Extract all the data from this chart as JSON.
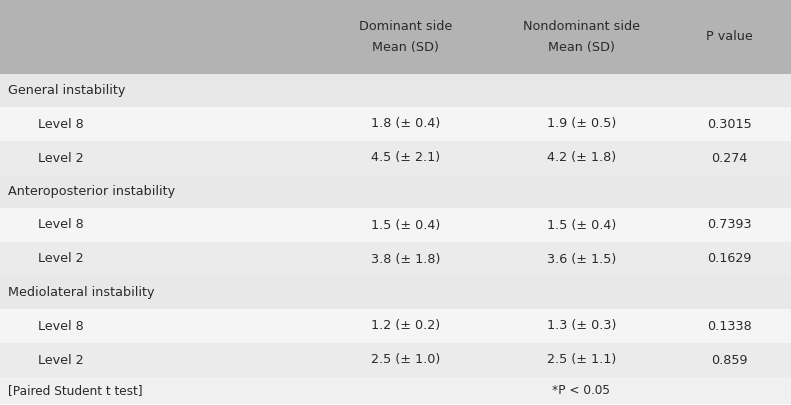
{
  "header_bg": "#b3b3b3",
  "section_bg": "#e8e8e8",
  "row_bg_odd": "#f5f5f5",
  "row_bg_even": "#ebebeb",
  "footer_bg": "#f0f0f0",
  "text_color": "#2a2a2a",
  "col_headers": [
    "Dominant side\nMean (SD)",
    "Nondominant side\nMean (SD)",
    "P value"
  ],
  "sections": [
    {
      "label": "General instability",
      "rows": [
        {
          "label": "Level 8",
          "dom": "1.8 (± 0.4)",
          "nondom": "1.9 (± 0.5)",
          "pval": "0.3015"
        },
        {
          "label": "Level 2",
          "dom": "4.5 (± 2.1)",
          "nondom": "4.2 (± 1.8)",
          "pval": "0.274"
        }
      ]
    },
    {
      "label": "Anteroposterior instability",
      "rows": [
        {
          "label": "Level 8",
          "dom": "1.5 (± 0.4)",
          "nondom": "1.5 (± 0.4)",
          "pval": "0.7393"
        },
        {
          "label": "Level 2",
          "dom": "3.8 (± 1.8)",
          "nondom": "3.6 (± 1.5)",
          "pval": "0.1629"
        }
      ]
    },
    {
      "label": "Mediolateral instability",
      "rows": [
        {
          "label": "Level 8",
          "dom": "1.2 (± 0.2)",
          "nondom": "1.3 (± 0.3)",
          "pval": "0.1338"
        },
        {
          "label": "Level 2",
          "dom": "2.5 (± 1.0)",
          "nondom": "2.5 (± 1.1)",
          "pval": "0.859"
        }
      ]
    }
  ],
  "footer_text": "[Paired Student t test]",
  "footer_pval": "*P < 0.05",
  "col_bounds": [
    0.0,
    0.4,
    0.625,
    0.845,
    1.0
  ],
  "font_size_header": 9.2,
  "font_size_body": 9.2,
  "font_size_section": 9.2
}
